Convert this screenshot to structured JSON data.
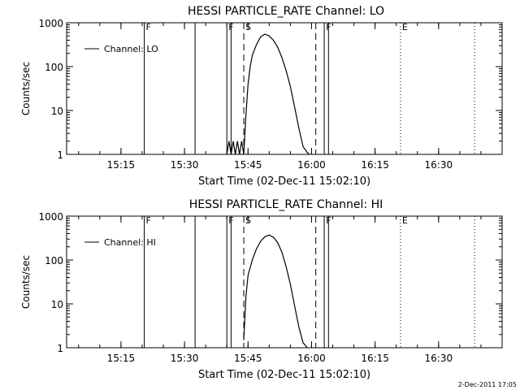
{
  "footer_timestamp": "2-Dec-2011 17:05",
  "chart_data": [
    {
      "type": "line",
      "title": "HESSI PARTICLE_RATE Channel: LO",
      "xlabel": "Start Time (02-Dec-11 15:02:10)",
      "ylabel": "Counts/sec",
      "y_scale": "log",
      "ylim": [
        1,
        1000
      ],
      "xlim": [
        "15:02:10",
        "16:45:00"
      ],
      "x_ticks": [
        "15:15",
        "15:30",
        "15:45",
        "16:00",
        "16:15",
        "16:30"
      ],
      "y_ticks": [
        "1",
        "10",
        "100",
        "1000"
      ],
      "grid": false,
      "legend": {
        "position": "top-left",
        "entries": [
          "Channel: LO"
        ]
      },
      "markers": [
        {
          "time": "15:20:30",
          "label": "F",
          "style": "solid"
        },
        {
          "time": "15:32:30",
          "label": "",
          "style": "solid"
        },
        {
          "time": "15:40:00",
          "label": "F",
          "style": "solid"
        },
        {
          "time": "15:41:00",
          "label": "",
          "style": "solid"
        },
        {
          "time": "15:44:00",
          "label": "S",
          "style": "dashed"
        },
        {
          "time": "16:01:00",
          "label": "",
          "style": "dashed"
        },
        {
          "time": "16:03:00",
          "label": "F",
          "style": "solid"
        },
        {
          "time": "16:04:00",
          "label": "",
          "style": "solid"
        },
        {
          "time": "16:21:00",
          "label": "E",
          "style": "dotted"
        },
        {
          "time": "16:38:30",
          "label": "",
          "style": "dotted"
        }
      ],
      "series": [
        {
          "name": "Channel: LO",
          "x": [
            "15:40:00",
            "15:40:30",
            "15:41:00",
            "15:41:30",
            "15:42:00",
            "15:42:30",
            "15:43:00",
            "15:43:30",
            "15:44:00",
            "15:44:30",
            "15:45:00",
            "15:45:30",
            "15:46:00",
            "15:47:00",
            "15:48:00",
            "15:49:00",
            "15:50:00",
            "15:51:00",
            "15:52:00",
            "15:53:00",
            "15:54:00",
            "15:55:00",
            "15:56:00",
            "15:57:00",
            "15:58:00",
            "15:59:00",
            "15:59:30"
          ],
          "y": [
            1,
            2,
            1,
            2,
            1,
            2,
            1,
            2,
            1,
            8,
            40,
            100,
            180,
            320,
            480,
            550,
            500,
            400,
            280,
            160,
            80,
            35,
            12,
            4,
            1.5,
            1.1,
            1
          ]
        }
      ]
    },
    {
      "type": "line",
      "title": "HESSI PARTICLE_RATE Channel: HI",
      "xlabel": "Start Time (02-Dec-11 15:02:10)",
      "ylabel": "Counts/sec",
      "y_scale": "log",
      "ylim": [
        1,
        1000
      ],
      "xlim": [
        "15:02:10",
        "16:45:00"
      ],
      "x_ticks": [
        "15:15",
        "15:30",
        "15:45",
        "16:00",
        "16:15",
        "16:30"
      ],
      "y_ticks": [
        "1",
        "10",
        "100",
        "1000"
      ],
      "grid": false,
      "legend": {
        "position": "top-left",
        "entries": [
          "Channel: HI"
        ]
      },
      "markers": [
        {
          "time": "15:20:30",
          "label": "F",
          "style": "solid"
        },
        {
          "time": "15:32:30",
          "label": "",
          "style": "solid"
        },
        {
          "time": "15:40:00",
          "label": "F",
          "style": "solid"
        },
        {
          "time": "15:41:00",
          "label": "",
          "style": "solid"
        },
        {
          "time": "15:44:00",
          "label": "S",
          "style": "dashed"
        },
        {
          "time": "16:01:00",
          "label": "",
          "style": "dashed"
        },
        {
          "time": "16:03:00",
          "label": "F",
          "style": "solid"
        },
        {
          "time": "16:04:00",
          "label": "",
          "style": "solid"
        },
        {
          "time": "16:21:00",
          "label": "E",
          "style": "dotted"
        },
        {
          "time": "16:38:30",
          "label": "",
          "style": "dotted"
        }
      ],
      "series": [
        {
          "name": "Channel: HI",
          "x": [
            "15:44:00",
            "15:44:30",
            "15:45:00",
            "15:46:00",
            "15:47:00",
            "15:48:00",
            "15:49:00",
            "15:50:00",
            "15:51:00",
            "15:52:00",
            "15:53:00",
            "15:54:00",
            "15:55:00",
            "15:56:00",
            "15:57:00",
            "15:58:00",
            "15:59:00"
          ],
          "y": [
            1.5,
            15,
            45,
            100,
            180,
            270,
            340,
            370,
            330,
            250,
            150,
            70,
            28,
            9,
            3,
            1.3,
            1
          ]
        }
      ]
    }
  ]
}
